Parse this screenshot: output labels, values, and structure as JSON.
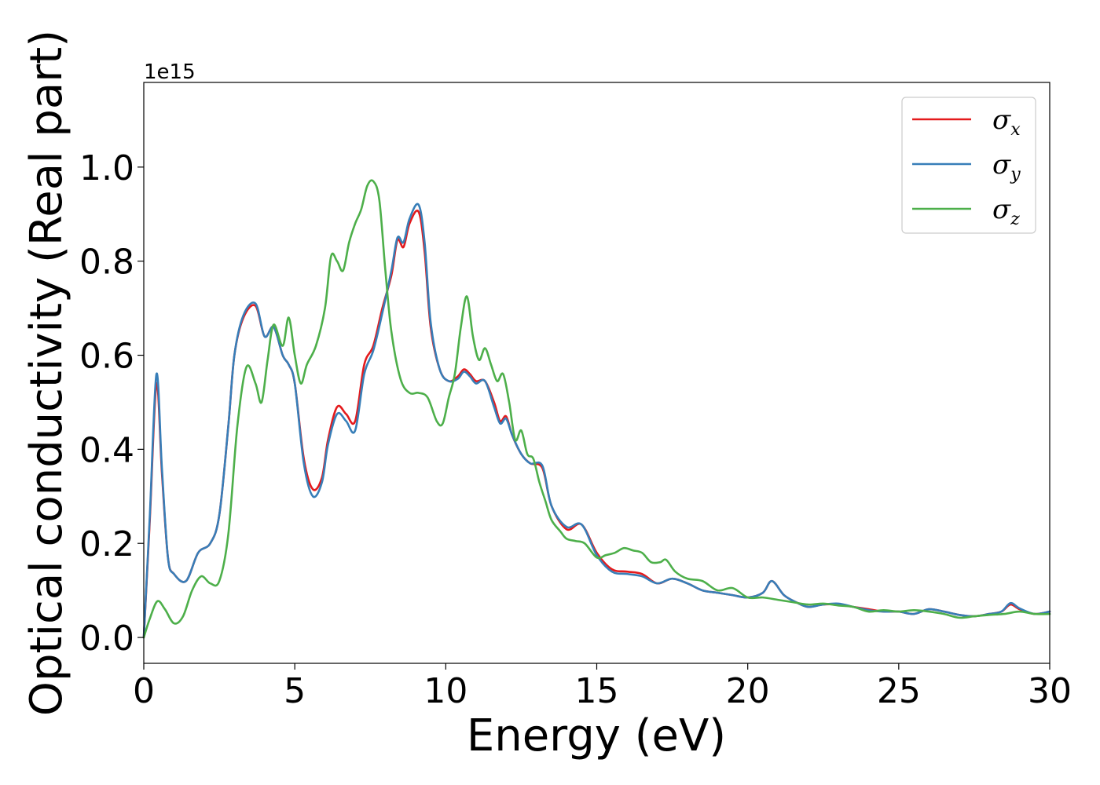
{
  "chart_data": {
    "type": "line",
    "title": "",
    "xlabel": "Energy (eV)",
    "ylabel": "Optical conductivity (Real part)",
    "y_offset_text": "1e15",
    "xlim": [
      0,
      30
    ],
    "ylim": [
      -0.055,
      1.18
    ],
    "xticks": [
      0,
      5,
      10,
      15,
      20,
      25,
      30
    ],
    "xtick_labels": [
      "0",
      "5",
      "10",
      "15",
      "20",
      "25",
      "30"
    ],
    "yticks": [
      0.0,
      0.2,
      0.4,
      0.6,
      0.8,
      1.0
    ],
    "ytick_labels": [
      "0.0",
      "0.2",
      "0.4",
      "0.6",
      "0.8",
      "1.0"
    ],
    "grid": false,
    "legend_position": "top-right",
    "series": [
      {
        "name": "σx",
        "symbol": "σ",
        "subscript": "x",
        "color": "#e41a1c",
        "x": [
          0,
          0.2,
          0.42,
          0.6,
          0.8,
          1.0,
          1.4,
          1.8,
          2.2,
          2.5,
          2.8,
          3.0,
          3.3,
          3.7,
          4.0,
          4.3,
          4.6,
          4.8,
          5.0,
          5.3,
          5.6,
          5.9,
          6.1,
          6.4,
          6.7,
          7.0,
          7.3,
          7.6,
          7.9,
          8.2,
          8.4,
          8.6,
          8.8,
          9.1,
          9.3,
          9.5,
          9.8,
          10.1,
          10.4,
          10.6,
          10.8,
          11.0,
          11.3,
          11.6,
          11.8,
          12.0,
          12.2,
          12.5,
          12.8,
          13.2,
          13.5,
          14.0,
          14.5,
          15.0,
          15.5,
          16.0,
          16.5,
          17.0,
          17.5,
          18.0,
          18.5,
          19.0,
          19.5,
          20.0,
          20.5,
          20.8,
          21.2,
          21.6,
          22.0,
          22.5,
          23.0,
          23.5,
          24.0,
          24.5,
          25.0,
          25.5,
          26.0,
          26.5,
          27.0,
          27.5,
          28.0,
          28.4,
          28.7,
          29.0,
          29.5,
          30.0
        ],
        "y": [
          0.0,
          0.25,
          0.54,
          0.35,
          0.17,
          0.135,
          0.12,
          0.18,
          0.2,
          0.26,
          0.45,
          0.6,
          0.68,
          0.705,
          0.64,
          0.66,
          0.6,
          0.58,
          0.54,
          0.38,
          0.315,
          0.34,
          0.42,
          0.49,
          0.475,
          0.46,
          0.58,
          0.62,
          0.7,
          0.77,
          0.845,
          0.83,
          0.88,
          0.905,
          0.82,
          0.66,
          0.57,
          0.545,
          0.555,
          0.57,
          0.56,
          0.545,
          0.545,
          0.5,
          0.46,
          0.47,
          0.43,
          0.39,
          0.37,
          0.36,
          0.28,
          0.23,
          0.24,
          0.18,
          0.145,
          0.14,
          0.135,
          0.115,
          0.125,
          0.115,
          0.1,
          0.095,
          0.09,
          0.085,
          0.095,
          0.12,
          0.09,
          0.075,
          0.065,
          0.07,
          0.07,
          0.065,
          0.06,
          0.055,
          0.055,
          0.05,
          0.06,
          0.055,
          0.048,
          0.045,
          0.05,
          0.055,
          0.07,
          0.06,
          0.05,
          0.055
        ]
      },
      {
        "name": "σy",
        "symbol": "σ",
        "subscript": "y",
        "color": "#377eb8",
        "x": [
          0,
          0.2,
          0.42,
          0.6,
          0.8,
          1.0,
          1.4,
          1.8,
          2.2,
          2.5,
          2.8,
          3.0,
          3.3,
          3.7,
          4.0,
          4.3,
          4.6,
          4.8,
          5.0,
          5.3,
          5.6,
          5.9,
          6.1,
          6.4,
          6.7,
          7.0,
          7.3,
          7.6,
          7.9,
          8.2,
          8.4,
          8.6,
          8.8,
          9.1,
          9.3,
          9.5,
          9.8,
          10.1,
          10.4,
          10.6,
          10.8,
          11.0,
          11.3,
          11.6,
          11.8,
          12.0,
          12.2,
          12.5,
          12.8,
          13.2,
          13.5,
          14.0,
          14.5,
          15.0,
          15.5,
          16.0,
          16.5,
          17.0,
          17.5,
          18.0,
          18.5,
          19.0,
          19.5,
          20.0,
          20.5,
          20.8,
          21.2,
          21.6,
          22.0,
          22.5,
          23.0,
          23.5,
          24.0,
          24.5,
          25.0,
          25.5,
          26.0,
          26.5,
          27.0,
          27.5,
          28.0,
          28.4,
          28.7,
          29.0,
          29.5,
          30.0
        ],
        "y": [
          0.0,
          0.26,
          0.56,
          0.36,
          0.17,
          0.135,
          0.12,
          0.18,
          0.2,
          0.26,
          0.45,
          0.6,
          0.685,
          0.71,
          0.64,
          0.66,
          0.6,
          0.58,
          0.54,
          0.37,
          0.3,
          0.33,
          0.41,
          0.475,
          0.46,
          0.44,
          0.56,
          0.61,
          0.69,
          0.78,
          0.85,
          0.84,
          0.89,
          0.92,
          0.84,
          0.67,
          0.57,
          0.545,
          0.55,
          0.565,
          0.555,
          0.54,
          0.545,
          0.49,
          0.455,
          0.465,
          0.43,
          0.39,
          0.37,
          0.365,
          0.28,
          0.235,
          0.24,
          0.175,
          0.14,
          0.135,
          0.13,
          0.115,
          0.125,
          0.115,
          0.1,
          0.095,
          0.09,
          0.085,
          0.095,
          0.12,
          0.09,
          0.075,
          0.065,
          0.07,
          0.072,
          0.065,
          0.058,
          0.055,
          0.055,
          0.05,
          0.06,
          0.055,
          0.048,
          0.045,
          0.05,
          0.055,
          0.073,
          0.062,
          0.05,
          0.055
        ]
      },
      {
        "name": "σz",
        "symbol": "σ",
        "subscript": "z",
        "color": "#4daf4a",
        "x": [
          0,
          0.2,
          0.45,
          0.7,
          1.0,
          1.3,
          1.6,
          1.9,
          2.2,
          2.5,
          2.8,
          3.1,
          3.4,
          3.7,
          3.9,
          4.1,
          4.3,
          4.6,
          4.8,
          5.0,
          5.2,
          5.4,
          5.7,
          6.0,
          6.2,
          6.4,
          6.6,
          6.8,
          7.0,
          7.2,
          7.4,
          7.6,
          7.8,
          8.0,
          8.2,
          8.5,
          8.8,
          9.1,
          9.4,
          9.7,
          9.9,
          10.1,
          10.3,
          10.5,
          10.7,
          10.9,
          11.1,
          11.3,
          11.5,
          11.7,
          11.9,
          12.1,
          12.3,
          12.5,
          12.7,
          12.9,
          13.1,
          13.3,
          13.5,
          13.8,
          14.0,
          14.3,
          14.6,
          15.0,
          15.3,
          15.6,
          15.9,
          16.2,
          16.5,
          16.8,
          17.1,
          17.3,
          17.6,
          18.0,
          18.5,
          19.0,
          19.5,
          20.0,
          20.5,
          21.0,
          21.5,
          22.0,
          22.5,
          23.0,
          23.5,
          24.0,
          24.5,
          25.0,
          25.5,
          26.0,
          26.5,
          27.0,
          27.5,
          28.0,
          28.5,
          29.0,
          29.5,
          30.0
        ],
        "y": [
          0.0,
          0.04,
          0.077,
          0.06,
          0.03,
          0.045,
          0.1,
          0.13,
          0.115,
          0.12,
          0.22,
          0.45,
          0.575,
          0.54,
          0.5,
          0.59,
          0.665,
          0.62,
          0.68,
          0.6,
          0.54,
          0.58,
          0.62,
          0.7,
          0.81,
          0.8,
          0.78,
          0.84,
          0.88,
          0.91,
          0.96,
          0.97,
          0.93,
          0.78,
          0.65,
          0.55,
          0.52,
          0.52,
          0.51,
          0.46,
          0.455,
          0.51,
          0.56,
          0.66,
          0.725,
          0.64,
          0.59,
          0.615,
          0.58,
          0.545,
          0.56,
          0.5,
          0.42,
          0.44,
          0.39,
          0.38,
          0.33,
          0.29,
          0.25,
          0.225,
          0.21,
          0.205,
          0.2,
          0.17,
          0.175,
          0.18,
          0.19,
          0.185,
          0.18,
          0.16,
          0.16,
          0.165,
          0.14,
          0.125,
          0.12,
          0.1,
          0.105,
          0.085,
          0.085,
          0.08,
          0.075,
          0.07,
          0.072,
          0.068,
          0.065,
          0.055,
          0.058,
          0.055,
          0.058,
          0.055,
          0.05,
          0.042,
          0.045,
          0.048,
          0.05,
          0.055,
          0.05,
          0.05
        ]
      }
    ]
  }
}
